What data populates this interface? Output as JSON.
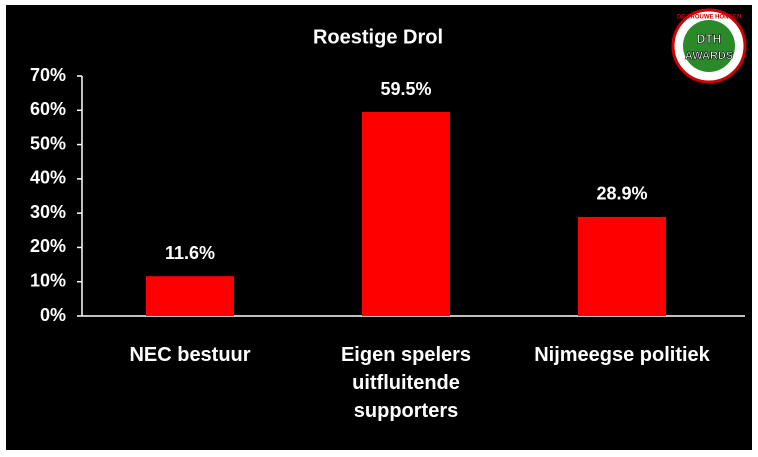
{
  "chart_data": {
    "type": "bar",
    "title": "Roestige Drol",
    "categories": [
      "NEC bestuur",
      "Eigen spelers uitfluitende supporters",
      "Nijmeegse politiek"
    ],
    "values": [
      11.6,
      59.5,
      28.9
    ],
    "value_labels": [
      "11.6%",
      "59.5%",
      "28.9%"
    ],
    "color": "#ff0000",
    "ylim": [
      0,
      70
    ],
    "yticks": [
      {
        "value": 0,
        "label": "0%"
      },
      {
        "value": 10,
        "label": "10%"
      },
      {
        "value": 20,
        "label": "20%"
      },
      {
        "value": 30,
        "label": "30%"
      },
      {
        "value": 40,
        "label": "40%"
      },
      {
        "value": 50,
        "label": "50%"
      },
      {
        "value": 60,
        "label": "60%"
      },
      {
        "value": 70,
        "label": "70%"
      }
    ],
    "grid": false
  },
  "logo": {
    "top": "DE TROUWE HONDEN",
    "main": "DTH",
    "sub": "AWARDS"
  }
}
